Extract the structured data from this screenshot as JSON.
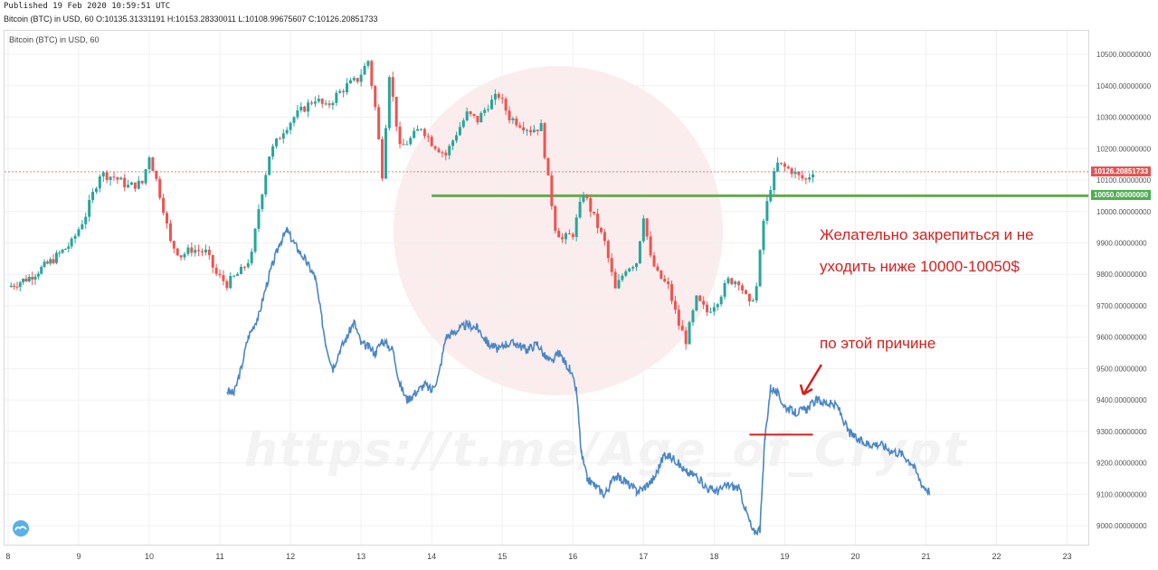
{
  "header": {
    "published": "Published 19 Feb 2020 10:59:51 UTC",
    "ohlc": "Bitcoin (BTC) in USD, 60 O:10135.31331191 H:10153.28330011 L:10108.99675607 C:10126.20851733"
  },
  "symbol_label": "Bitcoin (BTC) in USD, 60",
  "annotations": {
    "line1": "Желательно закрепиться и не",
    "line2": "уходить ниже 10000-10050$",
    "reason": "по этой причине"
  },
  "watermark": "https://t.me/Age_of_Crypt",
  "price_tags": {
    "current": "10126.20851733",
    "level": "10050.00000000"
  },
  "colors": {
    "up": "#26a69a",
    "down": "#ef5350",
    "overlay": "#4a86c5",
    "support": "#6aa84f",
    "annotation": "#d61f1f"
  },
  "chart_data": {
    "type": "candlestick",
    "x_ticks": [
      "8",
      "9",
      "10",
      "11",
      "12",
      "13",
      "14",
      "15",
      "16",
      "17",
      "18",
      "19",
      "20",
      "21",
      "22",
      "23"
    ],
    "y_ticks": [
      "10500.00000000",
      "10400.00000000",
      "10300.00000000",
      "10200.00000000",
      "10100.00000000",
      "10000.00000000",
      "9900.00000000",
      "9800.00000000",
      "9700.00000000",
      "9600.00000000",
      "9500.00000000",
      "9400.00000000",
      "9300.00000000",
      "9200.00000000",
      "9100.00000000",
      "9000.00000000"
    ],
    "ylim": [
      8940,
      10575
    ],
    "xlim": [
      7.95,
      23.3
    ],
    "series": [
      {
        "name": "Bitcoin (BTC) in USD, 60",
        "kind": "candles",
        "points": [
          [
            8.0,
            9760
          ],
          [
            8.3,
            9790
          ],
          [
            8.6,
            9840
          ],
          [
            8.9,
            9900
          ],
          [
            9.1,
            9990
          ],
          [
            9.3,
            10120
          ],
          [
            9.5,
            10110
          ],
          [
            9.7,
            10080
          ],
          [
            9.9,
            10090
          ],
          [
            10.0,
            10180
          ],
          [
            10.1,
            10100
          ],
          [
            10.2,
            10010
          ],
          [
            10.3,
            9900
          ],
          [
            10.45,
            9860
          ],
          [
            10.6,
            9880
          ],
          [
            10.8,
            9870
          ],
          [
            10.95,
            9800
          ],
          [
            11.1,
            9770
          ],
          [
            11.3,
            9810
          ],
          [
            11.45,
            9860
          ],
          [
            11.55,
            10010
          ],
          [
            11.7,
            10180
          ],
          [
            11.9,
            10260
          ],
          [
            12.05,
            10300
          ],
          [
            12.2,
            10330
          ],
          [
            12.35,
            10360
          ],
          [
            12.5,
            10330
          ],
          [
            12.65,
            10370
          ],
          [
            12.8,
            10400
          ],
          [
            12.95,
            10420
          ],
          [
            13.1,
            10480
          ],
          [
            13.2,
            10330
          ],
          [
            13.3,
            10120
          ],
          [
            13.4,
            10440
          ],
          [
            13.55,
            10200
          ],
          [
            13.7,
            10230
          ],
          [
            13.85,
            10270
          ],
          [
            14.0,
            10220
          ],
          [
            14.2,
            10180
          ],
          [
            14.35,
            10250
          ],
          [
            14.5,
            10310
          ],
          [
            14.65,
            10290
          ],
          [
            14.8,
            10340
          ],
          [
            14.95,
            10370
          ],
          [
            15.1,
            10300
          ],
          [
            15.25,
            10280
          ],
          [
            15.4,
            10260
          ],
          [
            15.55,
            10270
          ],
          [
            15.65,
            10100
          ],
          [
            15.75,
            9950
          ],
          [
            15.85,
            9910
          ],
          [
            16.0,
            9930
          ],
          [
            16.15,
            10060
          ],
          [
            16.3,
            9980
          ],
          [
            16.45,
            9900
          ],
          [
            16.6,
            9750
          ],
          [
            16.75,
            9820
          ],
          [
            16.9,
            9840
          ],
          [
            17.0,
            9990
          ],
          [
            17.1,
            9850
          ],
          [
            17.2,
            9800
          ],
          [
            17.35,
            9760
          ],
          [
            17.5,
            9640
          ],
          [
            17.6,
            9590
          ],
          [
            17.75,
            9720
          ],
          [
            17.9,
            9680
          ],
          [
            18.05,
            9720
          ],
          [
            18.2,
            9780
          ],
          [
            18.35,
            9780
          ],
          [
            18.5,
            9700
          ],
          [
            18.6,
            9760
          ],
          [
            18.7,
            9970
          ],
          [
            18.8,
            10080
          ],
          [
            18.9,
            10150
          ],
          [
            19.0,
            10140
          ],
          [
            19.1,
            10130
          ],
          [
            19.2,
            10110
          ],
          [
            19.3,
            10100
          ],
          [
            19.4,
            10130
          ]
        ]
      },
      {
        "name": "overlay",
        "kind": "line",
        "points": [
          [
            11.1,
            9430
          ],
          [
            11.2,
            9420
          ],
          [
            11.3,
            9500
          ],
          [
            11.4,
            9600
          ],
          [
            11.55,
            9670
          ],
          [
            11.7,
            9800
          ],
          [
            11.85,
            9900
          ],
          [
            11.95,
            9940
          ],
          [
            12.1,
            9880
          ],
          [
            12.2,
            9850
          ],
          [
            12.35,
            9790
          ],
          [
            12.5,
            9580
          ],
          [
            12.6,
            9500
          ],
          [
            12.7,
            9560
          ],
          [
            12.8,
            9600
          ],
          [
            12.9,
            9650
          ],
          [
            13.0,
            9580
          ],
          [
            13.1,
            9570
          ],
          [
            13.2,
            9550
          ],
          [
            13.3,
            9590
          ],
          [
            13.45,
            9560
          ],
          [
            13.55,
            9450
          ],
          [
            13.65,
            9400
          ],
          [
            13.75,
            9420
          ],
          [
            13.9,
            9450
          ],
          [
            14.0,
            9430
          ],
          [
            14.1,
            9480
          ],
          [
            14.2,
            9600
          ],
          [
            14.35,
            9620
          ],
          [
            14.5,
            9640
          ],
          [
            14.65,
            9630
          ],
          [
            14.8,
            9580
          ],
          [
            14.95,
            9560
          ],
          [
            15.05,
            9580
          ],
          [
            15.2,
            9580
          ],
          [
            15.35,
            9560
          ],
          [
            15.5,
            9580
          ],
          [
            15.6,
            9540
          ],
          [
            15.7,
            9520
          ],
          [
            15.8,
            9550
          ],
          [
            15.95,
            9500
          ],
          [
            16.05,
            9430
          ],
          [
            16.12,
            9230
          ],
          [
            16.2,
            9150
          ],
          [
            16.3,
            9130
          ],
          [
            16.45,
            9100
          ],
          [
            16.6,
            9160
          ],
          [
            16.75,
            9140
          ],
          [
            16.9,
            9110
          ],
          [
            17.0,
            9120
          ],
          [
            17.15,
            9150
          ],
          [
            17.3,
            9230
          ],
          [
            17.45,
            9210
          ],
          [
            17.6,
            9170
          ],
          [
            17.75,
            9160
          ],
          [
            17.9,
            9120
          ],
          [
            18.05,
            9110
          ],
          [
            18.2,
            9130
          ],
          [
            18.35,
            9120
          ],
          [
            18.45,
            9050
          ],
          [
            18.55,
            8980
          ],
          [
            18.65,
            8990
          ],
          [
            18.72,
            9280
          ],
          [
            18.8,
            9440
          ],
          [
            18.9,
            9420
          ],
          [
            19.0,
            9380
          ],
          [
            19.15,
            9360
          ],
          [
            19.3,
            9370
          ],
          [
            19.45,
            9400
          ],
          [
            19.6,
            9390
          ],
          [
            19.75,
            9380
          ],
          [
            19.9,
            9300
          ],
          [
            20.05,
            9270
          ],
          [
            20.2,
            9260
          ],
          [
            20.35,
            9260
          ],
          [
            20.5,
            9240
          ],
          [
            20.65,
            9230
          ],
          [
            20.8,
            9200
          ],
          [
            20.95,
            9130
          ],
          [
            21.05,
            9110
          ]
        ]
      }
    ],
    "levels": [
      {
        "value": 10050,
        "x_from": 14.0,
        "x_to": 23.3,
        "color": "#6aa84f"
      },
      {
        "value": 10126.2,
        "x_from": 7.95,
        "x_to": 23.3,
        "color": "#e08080",
        "dashed": true
      }
    ],
    "markers": [
      {
        "kind": "segment",
        "value": 9290,
        "x_from": 18.5,
        "x_to": 19.4,
        "color": "#d61f1f"
      }
    ]
  }
}
